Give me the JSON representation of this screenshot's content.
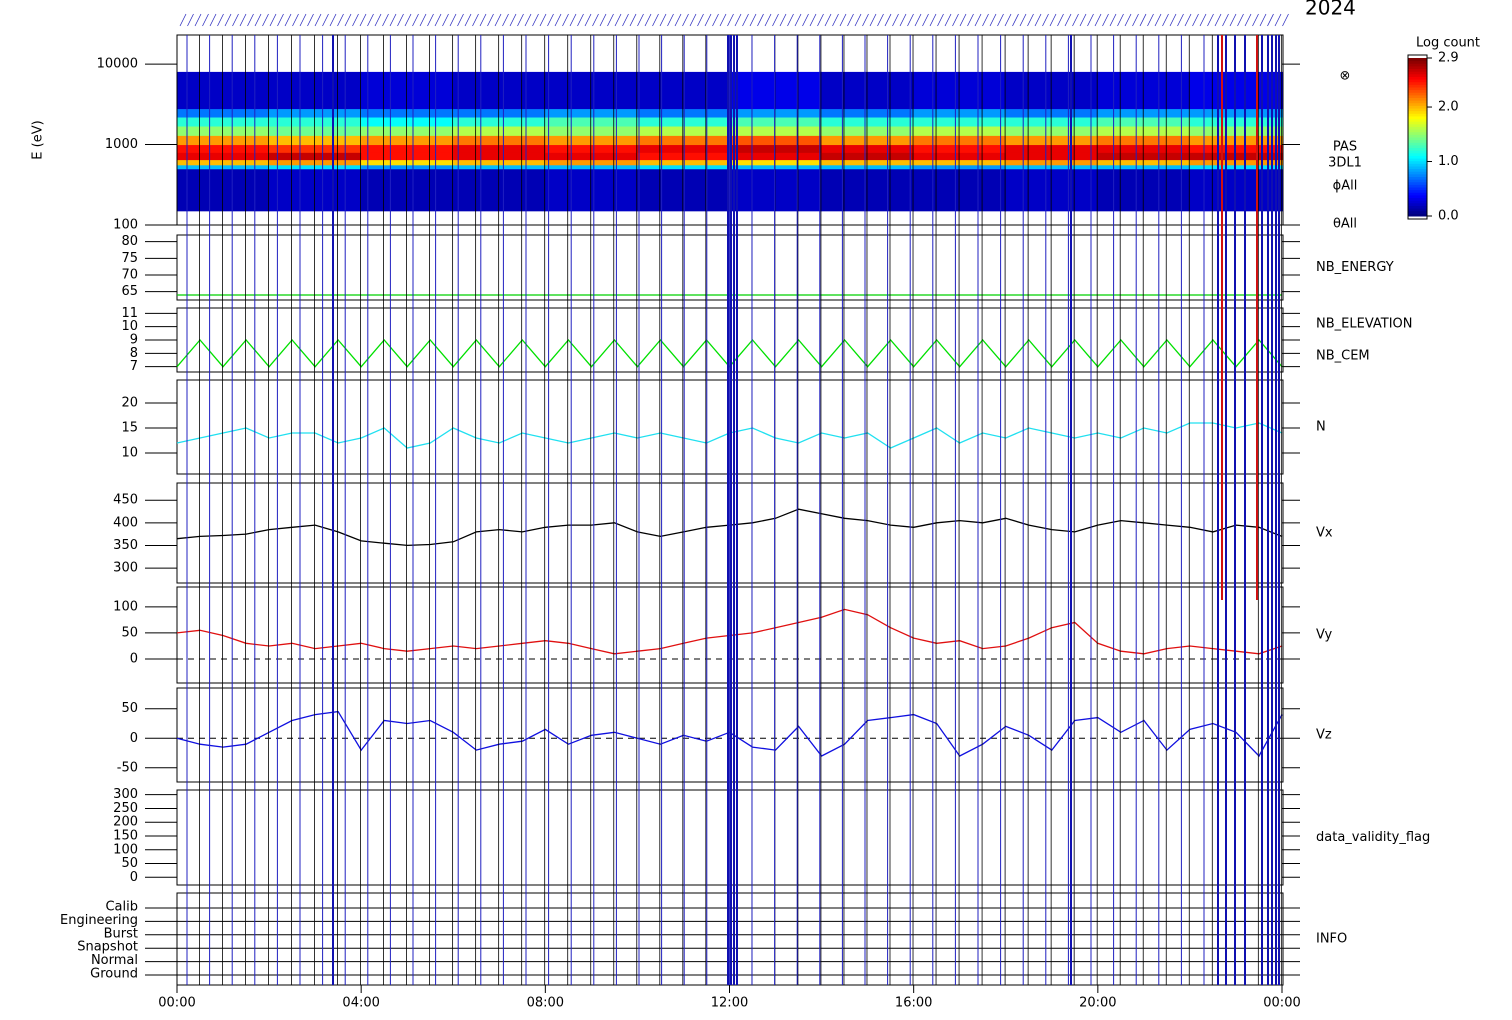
{
  "chart_data": [
    {
      "type": "heatmap",
      "title": "2024",
      "y_label": "E (eV)",
      "log": true,
      "labels": [
        "⊗",
        "PAS",
        "3DL1",
        "ϕAll",
        "θAll"
      ],
      "xlim": [
        0,
        24
      ],
      "ylim": [
        100,
        23000
      ],
      "yticks": [
        100,
        1000,
        10000
      ],
      "time_bins": [
        0,
        2,
        4,
        6,
        8,
        10,
        12,
        14,
        16,
        18,
        20,
        22,
        24
      ],
      "energy_bins": [
        150,
        500,
        560,
        650,
        800,
        1000,
        1300,
        1700,
        2200,
        2800,
        8000
      ],
      "values": [
        [
          0.15,
          0.9,
          2.0,
          2.6,
          2.5,
          2.1,
          1.5,
          1.2,
          0.7,
          0.2
        ],
        [
          0.2,
          1.0,
          2.1,
          2.7,
          2.4,
          2.0,
          1.4,
          1.2,
          0.8,
          0.2
        ],
        [
          0.15,
          0.8,
          1.9,
          2.5,
          2.5,
          2.1,
          1.5,
          1.1,
          0.7,
          0.25
        ],
        [
          0.15,
          0.9,
          2.0,
          2.6,
          2.6,
          2.2,
          1.6,
          1.2,
          0.7,
          0.2
        ],
        [
          0.2,
          0.9,
          2.1,
          2.6,
          2.5,
          2.1,
          1.5,
          1.3,
          0.8,
          0.2
        ],
        [
          0.15,
          1.0,
          2.0,
          2.5,
          2.6,
          2.2,
          1.6,
          1.2,
          0.7,
          0.2
        ],
        [
          0.2,
          0.9,
          1.9,
          2.6,
          2.7,
          2.3,
          1.6,
          1.3,
          0.8,
          0.3
        ],
        [
          0.15,
          0.9,
          2.0,
          2.7,
          2.6,
          2.1,
          1.5,
          1.2,
          0.7,
          0.2
        ],
        [
          0.15,
          0.8,
          2.0,
          2.6,
          2.5,
          2.2,
          1.6,
          1.2,
          0.8,
          0.25
        ],
        [
          0.2,
          0.9,
          2.1,
          2.6,
          2.6,
          2.1,
          1.5,
          1.2,
          0.7,
          0.2
        ],
        [
          0.15,
          0.9,
          2.0,
          2.7,
          2.6,
          2.2,
          1.6,
          1.3,
          0.8,
          0.25
        ],
        [
          0.2,
          1.0,
          2.1,
          2.7,
          2.5,
          2.1,
          1.5,
          1.2,
          0.8,
          0.3
        ]
      ],
      "colorbar": {
        "label": "Log count",
        "lim": [
          0,
          2.9
        ],
        "ticks": [
          {
            "value": 0,
            "label": "0.0"
          },
          {
            "value": 1,
            "label": "1.0"
          },
          {
            "value": 2,
            "label": "2.0"
          },
          2.9
        ]
      }
    },
    {
      "type": "line",
      "xlim": [
        0,
        24
      ],
      "ylim": [
        62.5,
        82
      ],
      "yticks": [
        65,
        70,
        75,
        80
      ],
      "series": [
        {
          "name": "NB_ENERGY",
          "color": "#00d000",
          "x": [
            0,
            24
          ],
          "values": [
            64,
            64
          ]
        }
      ]
    },
    {
      "type": "line",
      "xlim": [
        0,
        24
      ],
      "ylim": [
        6.6,
        11.4
      ],
      "yticks": [
        7,
        8,
        9,
        10,
        11
      ],
      "x": [
        0,
        0.5,
        1,
        1.5,
        2,
        2.5,
        3,
        3.5,
        4,
        4.5,
        5,
        5.5,
        6,
        6.5,
        7,
        7.5,
        8,
        8.5,
        9,
        9.5,
        10,
        10.5,
        11,
        11.5,
        12,
        12.5,
        13,
        13.5,
        14,
        14.5,
        15,
        15.5,
        16,
        16.5,
        17,
        17.5,
        18,
        18.5,
        19,
        19.5,
        20,
        20.5,
        21,
        21.5,
        22,
        22.5,
        23,
        23.5,
        24
      ],
      "series": [
        {
          "name": "NB_ELEVATION",
          "color": "#00e000",
          "values": [
            7,
            9,
            7,
            9,
            7,
            9,
            7,
            9,
            7,
            9,
            7,
            9,
            7,
            9,
            7,
            9,
            7,
            9,
            7,
            9,
            7,
            9,
            7,
            9,
            7,
            9,
            7,
            9,
            7,
            9,
            7,
            9,
            7,
            9,
            7,
            9,
            7,
            9,
            7,
            9,
            7,
            9,
            7,
            9,
            7,
            9,
            7,
            9,
            7
          ]
        },
        {
          "name": "NB_CEM",
          "color": "#1010c0"
        }
      ]
    },
    {
      "type": "line",
      "xlim": [
        0,
        24
      ],
      "ylim": [
        5.8,
        24.6
      ],
      "yticks": [
        10,
        15,
        20
      ],
      "x": [
        0,
        0.5,
        1,
        1.5,
        2,
        2.5,
        3,
        3.5,
        4,
        4.5,
        5,
        5.5,
        6,
        6.5,
        7,
        7.5,
        8,
        8.5,
        9,
        9.5,
        10,
        10.5,
        11,
        11.5,
        12,
        12.5,
        13,
        13.5,
        14,
        14.5,
        15,
        15.5,
        16,
        16.5,
        17,
        17.5,
        18,
        18.5,
        19,
        19.5,
        20,
        20.5,
        21,
        21.5,
        22,
        22.5,
        23,
        23.5,
        24
      ],
      "series": [
        {
          "name": "N",
          "color": "#20e0f0",
          "values": [
            12,
            13,
            14,
            15,
            13,
            14,
            14,
            12,
            13,
            15,
            11,
            12,
            15,
            13,
            12,
            14,
            13,
            12,
            13,
            14,
            13,
            14,
            13,
            12,
            14,
            15,
            13,
            12,
            14,
            13,
            14,
            11,
            13,
            15,
            12,
            14,
            13,
            15,
            14,
            13,
            14,
            13,
            15,
            14,
            16,
            16,
            15,
            16,
            14
          ]
        }
      ]
    },
    {
      "type": "line",
      "xlim": [
        0,
        24
      ],
      "ylim": [
        267,
        488
      ],
      "yticks": [
        300,
        350,
        400,
        450
      ],
      "x": [
        0,
        0.5,
        1,
        1.5,
        2,
        2.5,
        3,
        3.5,
        4,
        4.5,
        5,
        5.5,
        6,
        6.5,
        7,
        7.5,
        8,
        8.5,
        9,
        9.5,
        10,
        10.5,
        11,
        11.5,
        12,
        12.5,
        13,
        13.5,
        14,
        14.5,
        15,
        15.5,
        16,
        16.5,
        17,
        17.5,
        18,
        18.5,
        19,
        19.5,
        20,
        20.5,
        21,
        21.5,
        22,
        22.5,
        23,
        23.5,
        24
      ],
      "series": [
        {
          "name": "Vx",
          "color": "#000000",
          "values": [
            365,
            370,
            372,
            375,
            385,
            390,
            395,
            380,
            360,
            355,
            350,
            352,
            358,
            380,
            385,
            380,
            390,
            395,
            395,
            400,
            380,
            370,
            380,
            390,
            395,
            400,
            410,
            430,
            420,
            410,
            405,
            395,
            390,
            400,
            405,
            400,
            410,
            395,
            385,
            380,
            395,
            405,
            400,
            395,
            390,
            380,
            395,
            390,
            370
          ]
        }
      ]
    },
    {
      "type": "line",
      "xlim": [
        0,
        24
      ],
      "ylim": [
        -46,
        138
      ],
      "yticks": [
        0,
        50,
        100
      ],
      "zero_line": true,
      "x": [
        0,
        0.5,
        1,
        1.5,
        2,
        2.5,
        3,
        3.5,
        4,
        4.5,
        5,
        5.5,
        6,
        6.5,
        7,
        7.5,
        8,
        8.5,
        9,
        9.5,
        10,
        10.5,
        11,
        11.5,
        12,
        12.5,
        13,
        13.5,
        14,
        14.5,
        15,
        15.5,
        16,
        16.5,
        17,
        17.5,
        18,
        18.5,
        19,
        19.5,
        20,
        20.5,
        21,
        21.5,
        22,
        22.5,
        23,
        23.5,
        24
      ],
      "series": [
        {
          "name": "Vy",
          "color": "#e01010",
          "values": [
            50,
            55,
            45,
            30,
            25,
            30,
            20,
            25,
            30,
            20,
            15,
            20,
            25,
            20,
            25,
            30,
            35,
            30,
            20,
            10,
            15,
            20,
            30,
            40,
            45,
            50,
            60,
            70,
            80,
            95,
            85,
            60,
            40,
            30,
            35,
            20,
            25,
            40,
            60,
            70,
            30,
            15,
            10,
            20,
            25,
            20,
            15,
            10,
            25
          ]
        }
      ]
    },
    {
      "type": "line",
      "xlim": [
        0,
        24
      ],
      "ylim": [
        -74,
        85
      ],
      "yticks": [
        -50,
        0,
        50
      ],
      "zero_line": true,
      "x": [
        0,
        0.5,
        1,
        1.5,
        2,
        2.5,
        3,
        3.5,
        4,
        4.5,
        5,
        5.5,
        6,
        6.5,
        7,
        7.5,
        8,
        8.5,
        9,
        9.5,
        10,
        10.5,
        11,
        11.5,
        12,
        12.5,
        13,
        13.5,
        14,
        14.5,
        15,
        15.5,
        16,
        16.5,
        17,
        17.5,
        18,
        18.5,
        19,
        19.5,
        20,
        20.5,
        21,
        21.5,
        22,
        22.5,
        23,
        23.5,
        24
      ],
      "series": [
        {
          "name": "Vz",
          "color": "#1010e0",
          "values": [
            0,
            -10,
            -15,
            -10,
            10,
            30,
            40,
            45,
            -20,
            30,
            25,
            30,
            10,
            -20,
            -10,
            -5,
            15,
            -10,
            5,
            10,
            0,
            -10,
            5,
            -5,
            10,
            -15,
            -20,
            20,
            -30,
            -10,
            30,
            35,
            40,
            25,
            -30,
            -10,
            20,
            5,
            -20,
            30,
            35,
            10,
            30,
            -20,
            15,
            25,
            10,
            -30,
            40
          ]
        }
      ]
    },
    {
      "type": "line",
      "label": "data_validity_flag",
      "xlim": [
        0,
        24
      ],
      "ylim": [
        -28,
        317
      ],
      "yticks": [
        0,
        50,
        100,
        150,
        200,
        250,
        300
      ]
    },
    {
      "type": "category",
      "label": "INFO",
      "xlim": [
        0,
        24
      ],
      "categories": [
        "Calib",
        "Engineering",
        "Burst",
        "Snapshot",
        "Normal",
        "Ground"
      ],
      "xticks": [
        {
          "value": 0,
          "label": "00:00"
        },
        {
          "value": 4,
          "label": "04:00"
        },
        {
          "value": 8,
          "label": "08:00"
        },
        {
          "value": 12,
          "label": "12:00"
        },
        {
          "value": 16,
          "label": "16:00"
        },
        {
          "value": 20,
          "label": "20:00"
        },
        {
          "value": 24,
          "label": "00:00"
        }
      ]
    }
  ]
}
